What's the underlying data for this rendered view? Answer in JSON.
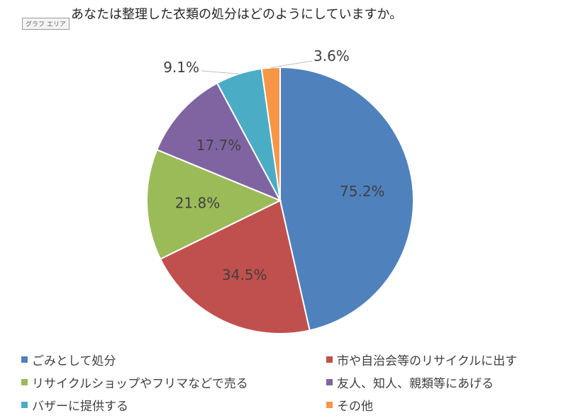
{
  "chart_area_label": "グラフ エリア",
  "chart_data": {
    "type": "pie",
    "title": "あなたは整理した衣類の処分はどのようにしていますか。",
    "categories": [
      "ごみとして処分",
      "市や自治会等のリサイクルに出す",
      "リサイクルショップやフリマなどで売る",
      "友人、知人、親類等にあげる",
      "バザーに提供する",
      "その他"
    ],
    "values": [
      75.2,
      34.5,
      21.8,
      17.7,
      9.1,
      3.6
    ],
    "labels": [
      "75.2%",
      "34.5%",
      "21.8%",
      "17.7%",
      "9.1%",
      "3.6%"
    ],
    "colors": [
      "#4F81BD",
      "#C0504D",
      "#9BBB59",
      "#8064A2",
      "#4BACC6",
      "#F79646"
    ],
    "legend_position": "bottom"
  }
}
